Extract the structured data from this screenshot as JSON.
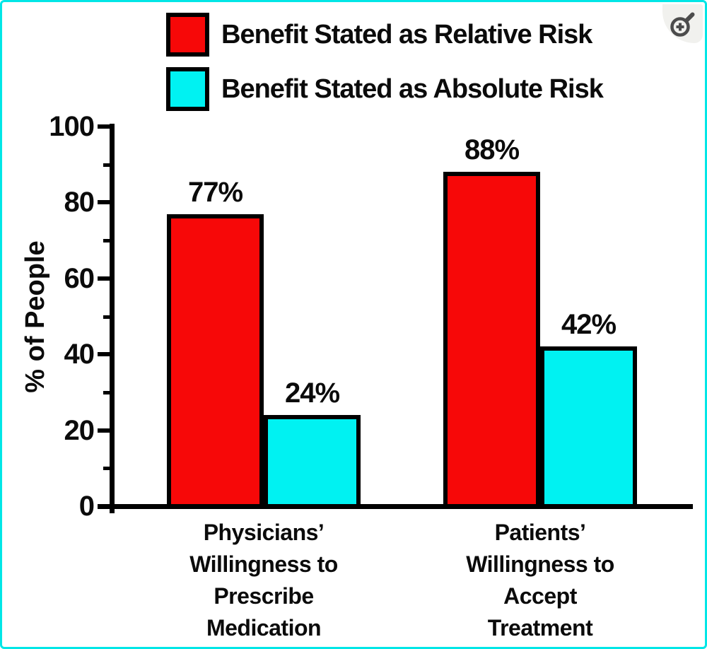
{
  "frame": {
    "border_color": "#00e6e6",
    "background": "#ffffff"
  },
  "zoom_button": {
    "icon": "zoom-in-icon",
    "background": "#f1f1ee",
    "glyph_color": "#4c4c4c"
  },
  "chart_data": {
    "type": "bar",
    "title": "",
    "ylabel": "% of People",
    "xlabel": "",
    "ylim": [
      0,
      100
    ],
    "yticks_major": [
      0,
      20,
      40,
      60,
      80,
      100
    ],
    "yticks_minor": [
      10,
      30,
      50,
      70,
      90
    ],
    "grid": false,
    "legend_position": "top-left",
    "bar_edge_color": "#000000",
    "text_color": "#0b0b0b",
    "categories": [
      "Physicians’\nWillingness to\nPrescribe\nMedication",
      "Patients’\nWillingness to\nAccept\nTreatment"
    ],
    "series": [
      {
        "name": "Benefit Stated as Relative Risk",
        "color": "#f70808",
        "values": [
          77,
          88
        ],
        "value_labels": [
          "77%",
          "88%"
        ]
      },
      {
        "name": "Benefit Stated as Absolute Risk",
        "color": "#00f2f2",
        "values": [
          24,
          42
        ],
        "value_labels": [
          "24%",
          "42%"
        ]
      }
    ]
  }
}
